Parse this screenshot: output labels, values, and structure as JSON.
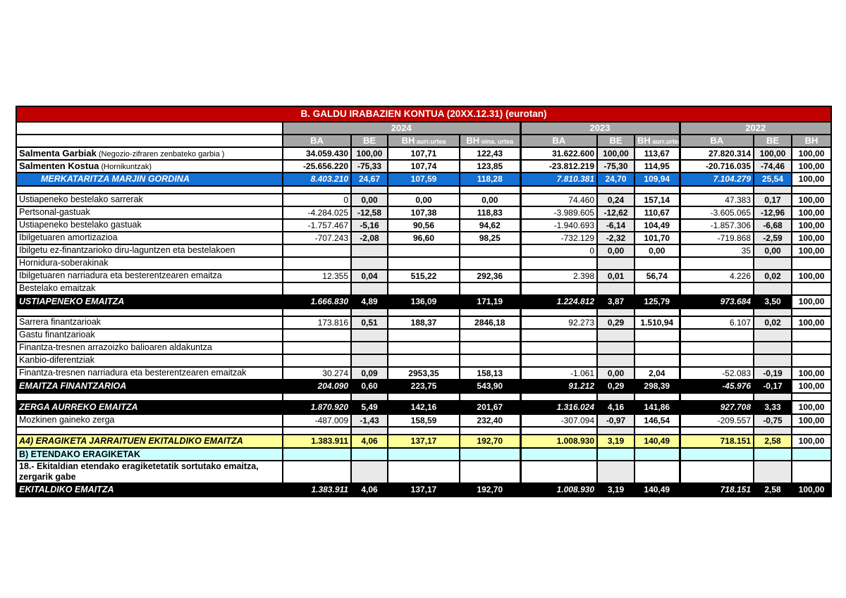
{
  "title": "B. GALDU IRABAZIEN KONTUA (20XX.12.31) (eurotan)",
  "unit_note": "(eurotan)",
  "colors": {
    "title_red": "#c00000",
    "header_gray": "#a6a6a6",
    "be_column_shade": "#e9e9e9",
    "subtotal_blue": "#1470d2",
    "subtotal_black": "#000000",
    "highlight_yellow": "#ffff99",
    "highlight_cyan": "#ccffff"
  },
  "year_groups": [
    {
      "label": "2024",
      "cols": 4
    },
    {
      "label": "2023",
      "cols": 3
    },
    {
      "label": "2022",
      "cols": 3
    }
  ],
  "col_headers": [
    {
      "main": "BA",
      "sub": ""
    },
    {
      "main": "BE",
      "sub": ""
    },
    {
      "main": "BH",
      "sub": "aurr.urtea"
    },
    {
      "main": "BH",
      "sub": "oina. urtea"
    },
    {
      "main": "BA",
      "sub": ""
    },
    {
      "main": "BE",
      "sub": ""
    },
    {
      "main": "BH",
      "sub": "aurr.urtea"
    },
    {
      "main": "BA",
      "sub": ""
    },
    {
      "main": "BE",
      "sub": ""
    },
    {
      "main": "BH",
      "sub": ""
    }
  ],
  "col_kinds": [
    "ba",
    "be",
    "bh",
    "bh",
    "ba",
    "be",
    "bh",
    "ba",
    "be",
    "bh"
  ],
  "rows": [
    {
      "type": "bold",
      "label": "Salmenta Garbiak",
      "note": "(Negozio-zifraren zenbateko garbia  )",
      "cells": [
        "34.059.430",
        "100,00",
        "107,71",
        "122,43",
        "31.622.600",
        "100,00",
        "113,67",
        "27.820.314",
        "100,00",
        "100,00"
      ]
    },
    {
      "type": "bold",
      "label": "Salmenten Kostua",
      "note": "(Hornikuntzak)",
      "cells": [
        "-25.656.220",
        "-75,33",
        "107,74",
        "123,85",
        "-23.812.219",
        "-75,30",
        "114,95",
        "-20.716.035",
        "-74,46",
        "100,00"
      ]
    },
    {
      "type": "blue",
      "label": "MERKATARITZA MARJIN GORDINA",
      "cells": [
        "8.403.210",
        "24,67",
        "107,59",
        "118,28",
        "7.810.381",
        "24,70",
        "109,94",
        "7.104.279",
        "25,54",
        "100,00"
      ]
    },
    {
      "type": "spacer",
      "label": "",
      "cells": [
        "",
        "",
        "",
        "",
        "",
        "",
        "",
        "",
        "",
        ""
      ]
    },
    {
      "type": "data",
      "label": "Ustiapeneko bestelako sarrerak",
      "cells": [
        "0",
        "0,00",
        "0,00",
        "0,00",
        "74.460",
        "0,24",
        "157,14",
        "47.383",
        "0,17",
        "100,00"
      ]
    },
    {
      "type": "data",
      "label": "Pertsonal-gastuak",
      "cells": [
        "-4.284.025",
        "-12,58",
        "107,38",
        "118,83",
        "-3.989.605",
        "-12,62",
        "110,67",
        "-3.605.065",
        "-12,96",
        "100,00"
      ]
    },
    {
      "type": "data",
      "label": "Ustiapeneko bestelako gastuak",
      "cells": [
        "-1.757.467",
        "-5,16",
        "90,56",
        "94,62",
        "-1.940.693",
        "-6,14",
        "104,49",
        "-1.857.306",
        "-6,68",
        "100,00"
      ]
    },
    {
      "type": "data",
      "label": "Ibilgetuaren amortizazioa",
      "cells": [
        "-707.243",
        "-2,08",
        "96,60",
        "98,25",
        "-732.129",
        "-2,32",
        "101,70",
        "-719.868",
        "-2,59",
        "100,00"
      ]
    },
    {
      "type": "data",
      "label": "Ibilgetu ez-finantzarioko diru-laguntzen eta bestelakoen",
      "cells": [
        "",
        "",
        "",
        "",
        "0",
        "0,00",
        "0,00",
        "35",
        "0,00",
        "100,00"
      ]
    },
    {
      "type": "data",
      "label": "Hornidura-soberakinak",
      "cells": [
        "",
        "",
        "",
        "",
        "",
        "",
        "",
        "",
        "",
        ""
      ]
    },
    {
      "type": "data",
      "label": " Ibilgetuaren narriadura eta besterentzearen emaitza",
      "cells": [
        "12.355",
        "0,04",
        "515,22",
        "292,36",
        "2.398",
        "0,01",
        "56,74",
        "4.226",
        "0,02",
        "100,00"
      ]
    },
    {
      "type": "data",
      "label": "Bestelako emaitzak",
      "cells": [
        "",
        "",
        "",
        "",
        "",
        "",
        "",
        "",
        "",
        ""
      ]
    },
    {
      "type": "black",
      "label": "USTIAPENEKO EMAITZA",
      "cells": [
        "1.666.830",
        "4,89",
        "136,09",
        "171,19",
        "1.224.812",
        "3,87",
        "125,79",
        "973.684",
        "3,50",
        "100,00"
      ]
    },
    {
      "type": "spacer",
      "label": "",
      "cells": [
        "",
        "",
        "",
        "",
        "",
        "",
        "",
        "",
        "",
        ""
      ]
    },
    {
      "type": "data",
      "label": "Sarrera finantzarioak",
      "cells": [
        "173.816",
        "0,51",
        "188,37",
        "2846,18",
        "92.273",
        "0,29",
        "1.510,94",
        "6.107",
        "0,02",
        "100,00"
      ]
    },
    {
      "type": "data",
      "label": "Gastu finantzarioak",
      "cells": [
        "",
        "",
        "",
        "",
        "",
        "",
        "",
        "",
        "",
        ""
      ]
    },
    {
      "type": "data",
      "label": "Finantza-tresnen arrazoizko balioaren aldakuntza",
      "cells": [
        "",
        "",
        "",
        "",
        "",
        "",
        "",
        "",
        "",
        ""
      ]
    },
    {
      "type": "data",
      "label": "Kanbio-diferentziak",
      "cells": [
        "",
        "",
        "",
        "",
        "",
        "",
        "",
        "",
        "",
        ""
      ]
    },
    {
      "type": "data",
      "label": "Finantza-tresnen narriadura eta besterentzearen emaitzak",
      "cells": [
        "30.274",
        "0,09",
        "2953,35",
        "158,13",
        "-1.061",
        "0,00",
        "2,04",
        "-52.083",
        "-0,19",
        "100,00"
      ]
    },
    {
      "type": "black",
      "label": "EMAITZA FINANTZARIOA",
      "cells": [
        "204.090",
        "0,60",
        "223,75",
        "543,90",
        "91.212",
        "0,29",
        "298,39",
        "-45.976",
        "-0,17",
        "100,00"
      ]
    },
    {
      "type": "spacer",
      "label": "",
      "cells": [
        "",
        "",
        "",
        "",
        "",
        "",
        "",
        "",
        "",
        ""
      ]
    },
    {
      "type": "black",
      "label": "ZERGA AURREKO EMAITZA",
      "cells": [
        "1.870.920",
        "5,49",
        "142,16",
        "201,67",
        "1.316.024",
        "4,16",
        "141,86",
        "927.708",
        "3,33",
        "100,00"
      ]
    },
    {
      "type": "data",
      "label": "Mozkinen gaineko zerga",
      "cells": [
        "-487.009",
        "-1,43",
        "158,59",
        "232,40",
        "-307.094",
        "-0,97",
        "146,54",
        "-209.557",
        "-0,75",
        "100,00"
      ]
    },
    {
      "type": "spacer",
      "label": "",
      "cells": [
        "",
        "",
        "",
        "",
        "",
        "",
        "",
        "",
        "",
        ""
      ]
    },
    {
      "type": "yellow",
      "label": "A4) ERAGIKETA JARRAITUEN EKITALDIKO EMAITZA",
      "cells": [
        "1.383.911",
        "4,06",
        "137,17",
        "192,70",
        "1.008.930",
        "3,19",
        "140,49",
        "718.151",
        "2,58",
        "100,00"
      ]
    },
    {
      "type": "cyan",
      "label": "B) ETENDAKO ERAGIKETAK",
      "cells": [
        "",
        "",
        "",
        "",
        "",
        "",
        "",
        "",
        "",
        ""
      ]
    },
    {
      "type": "tall",
      "label": "18.- Ekitaldian etendako eragiketetatik sortutako emaitza, zergarik gabe",
      "cells": [
        "",
        "",
        "",
        "",
        "",
        "",
        "",
        "",
        "",
        ""
      ]
    },
    {
      "type": "blackfull",
      "label": "EKITALDIKO EMAITZA",
      "cells": [
        "1.383.911",
        "4,06",
        "137,17",
        "192,70",
        "1.008.930",
        "3,19",
        "140,49",
        "718.151",
        "2,58",
        "100,00"
      ]
    }
  ]
}
